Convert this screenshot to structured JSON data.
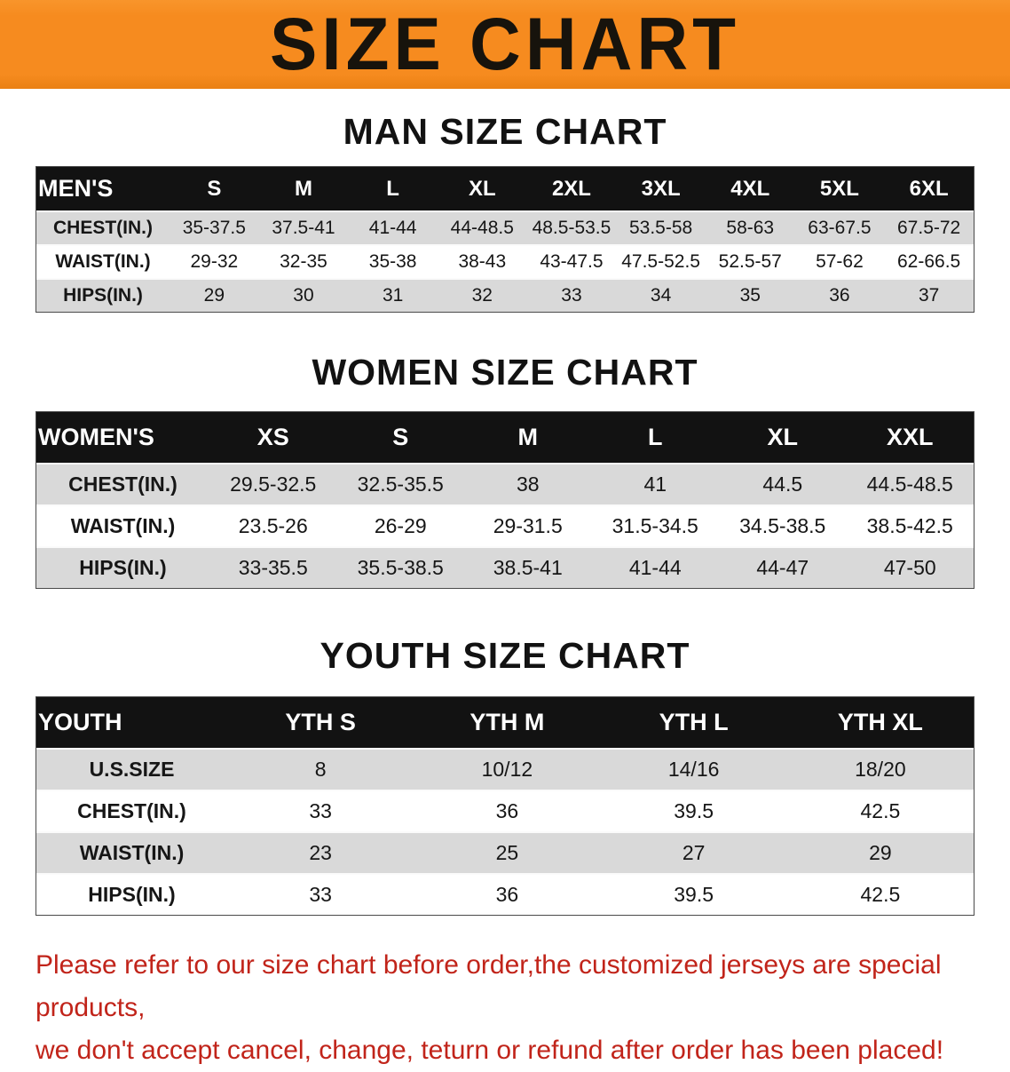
{
  "banner": {
    "title": "SIZE CHART"
  },
  "sections": [
    {
      "heading": "MAN SIZE CHART",
      "table": {
        "header": [
          "MEN'S",
          "S",
          "M",
          "L",
          "XL",
          "2XL",
          "3XL",
          "4XL",
          "5XL",
          "6XL"
        ],
        "rows": [
          [
            "CHEST(IN.)",
            "35-37.5",
            "37.5-41",
            "41-44",
            "44-48.5",
            "48.5-53.5",
            "53.5-58",
            "58-63",
            "63-67.5",
            "67.5-72"
          ],
          [
            "WAIST(IN.)",
            "29-32",
            "32-35",
            "35-38",
            "38-43",
            "43-47.5",
            "47.5-52.5",
            "52.5-57",
            "57-62",
            "62-66.5"
          ],
          [
            "HIPS(IN.)",
            "29",
            "30",
            "31",
            "32",
            "33",
            "34",
            "35",
            "36",
            "37"
          ]
        ]
      }
    },
    {
      "heading": "WOMEN SIZE CHART",
      "table": {
        "header": [
          "WOMEN'S",
          "XS",
          "S",
          "M",
          "L",
          "XL",
          "XXL"
        ],
        "rows": [
          [
            "CHEST(IN.)",
            "29.5-32.5",
            "32.5-35.5",
            "38",
            "41",
            "44.5",
            "44.5-48.5"
          ],
          [
            "WAIST(IN.)",
            "23.5-26",
            "26-29",
            "29-31.5",
            "31.5-34.5",
            "34.5-38.5",
            "38.5-42.5"
          ],
          [
            "HIPS(IN.)",
            "33-35.5",
            "35.5-38.5",
            "38.5-41",
            "41-44",
            "44-47",
            "47-50"
          ]
        ]
      }
    },
    {
      "heading": "YOUTH SIZE CHART",
      "table": {
        "header": [
          "YOUTH",
          "YTH S",
          "YTH M",
          "YTH L",
          "YTH XL"
        ],
        "rows": [
          [
            "U.S.SIZE",
            "8",
            "10/12",
            "14/16",
            "18/20"
          ],
          [
            "CHEST(IN.)",
            "33",
            "36",
            "39.5",
            "42.5"
          ],
          [
            "WAIST(IN.)",
            "23",
            "25",
            "27",
            "29"
          ],
          [
            "HIPS(IN.)",
            "33",
            "36",
            "39.5",
            "42.5"
          ]
        ]
      }
    }
  ],
  "footer_note": {
    "lines": [
      "Please refer to our size chart before order,the customized jerseys are special products,",
      "we don't accept cancel, change, teturn or refund after order has been placed!"
    ]
  },
  "colors": {
    "banner_bg": "#f68b1f",
    "table_header_bg": "#121212",
    "stripe_bg": "#d9d9d9",
    "note_color": "#c1241a"
  }
}
